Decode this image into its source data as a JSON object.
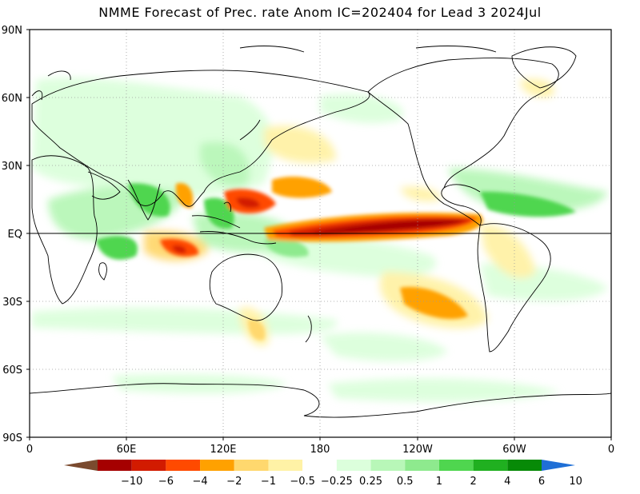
{
  "title": "NMME Forecast of Prec. rate Anom IC=202404 for Lead 3 2024Jul",
  "lat_labels": [
    "90N",
    "60N",
    "30N",
    "EQ",
    "30S",
    "60S",
    "90S"
  ],
  "lon_labels": [
    "0",
    "60E",
    "120E",
    "180",
    "120W",
    "60W",
    "0"
  ],
  "colorbar": {
    "labels": [
      "−10",
      "−6",
      "−4",
      "−2",
      "−1",
      "−0.5",
      "−0.25",
      "0.25",
      "0.5",
      "1",
      "2",
      "4",
      "6",
      "10"
    ],
    "colors": [
      "#7a4a2e",
      "#a50000",
      "#d21b00",
      "#ff4a00",
      "#ffa100",
      "#ffd86e",
      "#fff2a6",
      "#ffffff",
      "#dcffdc",
      "#b8f7b8",
      "#8eea8e",
      "#4fd64f",
      "#20b020",
      "#078a07",
      "#1f6fd6"
    ]
  }
}
